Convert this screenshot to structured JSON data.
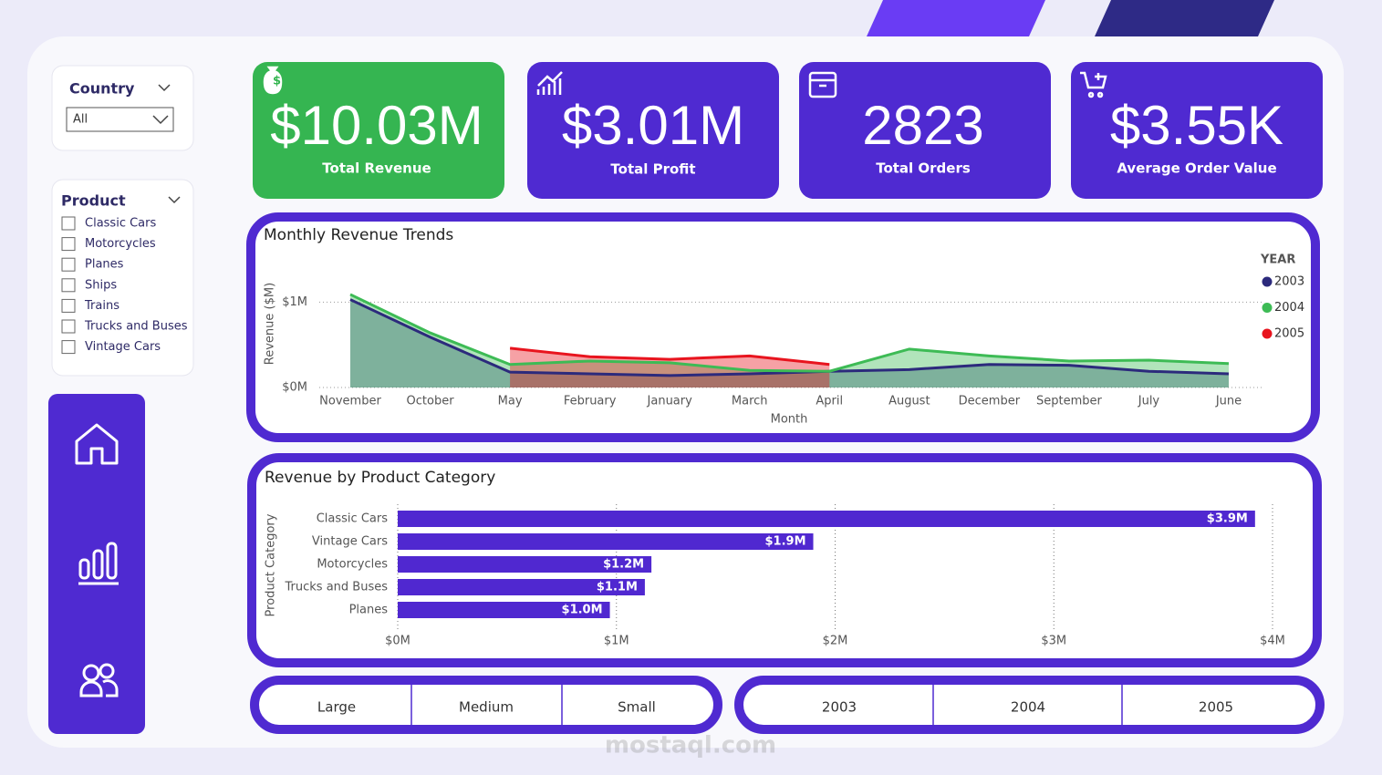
{
  "filters": {
    "country": {
      "title": "Country",
      "selected": "All"
    },
    "product": {
      "title": "Product",
      "options": [
        "Classic Cars",
        "Motorcycles",
        "Planes",
        "Ships",
        "Trains",
        "Trucks and Buses",
        "Vintage Cars"
      ]
    }
  },
  "kpis": [
    {
      "value": "$10.03M",
      "label": "Total Revenue"
    },
    {
      "value": "$3.01M",
      "label": "Total Profit"
    },
    {
      "value": 2823,
      "label": "Total Orders"
    },
    {
      "value": "$3.55K",
      "label": "Average Order Value"
    }
  ],
  "chart_data": [
    {
      "type": "area",
      "title": "Monthly Revenue Trends",
      "x_label": "Month",
      "y_label": "Revenue ($M)",
      "legend_title": "YEAR",
      "legend": "right",
      "categories": [
        "November",
        "October",
        "May",
        "February",
        "January",
        "March",
        "April",
        "August",
        "December",
        "September",
        "July",
        "June"
      ],
      "series": [
        {
          "name": "2003",
          "color": "#2c2a7c",
          "values": [
            1.03,
            0.59,
            0.18,
            0.16,
            0.14,
            0.16,
            0.19,
            0.21,
            0.27,
            0.26,
            0.19,
            0.16
          ]
        },
        {
          "name": "2004",
          "color": "#3dbb55",
          "values": [
            1.09,
            0.64,
            0.27,
            0.31,
            0.29,
            0.2,
            0.19,
            0.45,
            0.37,
            0.31,
            0.32,
            0.28
          ]
        },
        {
          "name": "2005",
          "color": "#e8141e",
          "values": [
            null,
            null,
            0.46,
            0.36,
            0.33,
            0.37,
            0.27,
            null,
            null,
            null,
            null,
            null
          ]
        }
      ],
      "ylim": [
        0,
        1.1
      ],
      "yticks": [
        {
          "value": 0,
          "label": "$0M"
        },
        {
          "value": 1,
          "label": "$1M"
        }
      ],
      "grid": true
    },
    {
      "type": "hbar",
      "title": "Revenue by Product Category",
      "y_label": "Product Category",
      "categories": [
        "Classic Cars",
        "Vintage Cars",
        "Motorcycles",
        "Trucks and Buses",
        "Planes"
      ],
      "values": [
        3.92,
        1.9,
        1.16,
        1.13,
        0.97
      ],
      "value_labels": [
        "$3.9M",
        "$1.9M",
        "$1.2M",
        "$1.1M",
        "$1.0M"
      ],
      "color": "#5028d0",
      "xlim": [
        0,
        4
      ],
      "xticks": [
        {
          "value": 0,
          "label": "$0M"
        },
        {
          "value": 1,
          "label": "$1M"
        },
        {
          "value": 2,
          "label": "$2M"
        },
        {
          "value": 3,
          "label": "$3M"
        },
        {
          "value": 4,
          "label": "$4M"
        }
      ],
      "grid": true
    }
  ],
  "slicers": {
    "size": [
      "Large",
      "Medium",
      "Small"
    ],
    "year": [
      "2003",
      "2004",
      "2005"
    ]
  },
  "watermark": "mostaql.com"
}
